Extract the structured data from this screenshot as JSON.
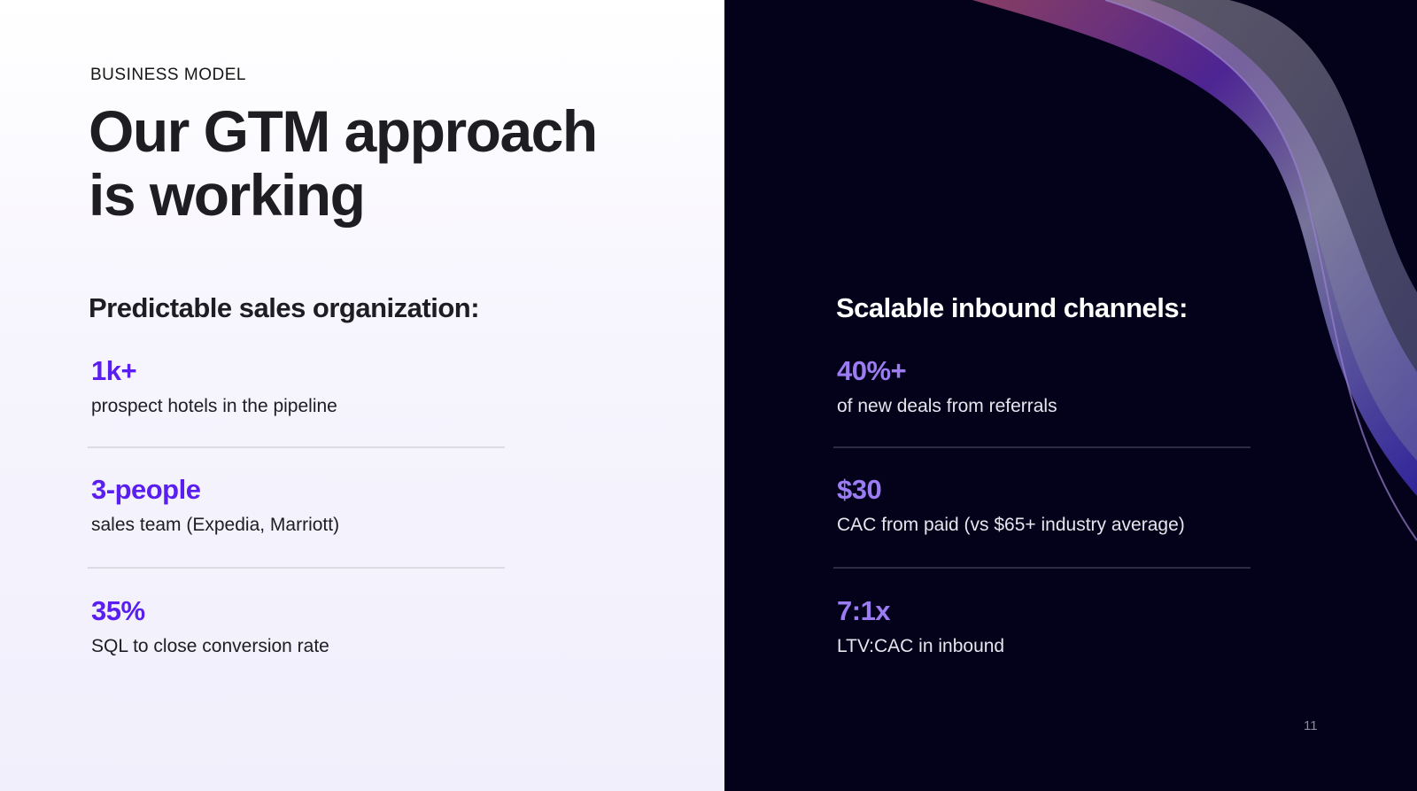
{
  "eyebrow": "BUSINESS MODEL",
  "title_line1": "Our GTM approach",
  "title_line2": "is working",
  "left": {
    "heading": "Predictable sales organization:",
    "items": [
      {
        "value": "1k+",
        "label": "prospect hotels in the pipeline"
      },
      {
        "value": "3-people",
        "label": "sales team (Expedia, Marriott)"
      },
      {
        "value": "35%",
        "label": "SQL to close conversion rate"
      }
    ]
  },
  "right": {
    "heading": "Scalable inbound channels:",
    "items": [
      {
        "value": "40%+",
        "label": "of new deals from referrals"
      },
      {
        "value": "$30",
        "label": "CAC from paid (vs $65+ industry average)"
      },
      {
        "value": "7:1x",
        "label": "LTV:CAC in inbound"
      }
    ]
  },
  "page_number": "11",
  "colors": {
    "accent_left": "#5a1ff0",
    "accent_right": "#9b7cf2",
    "dark_bg": "#03021a"
  }
}
